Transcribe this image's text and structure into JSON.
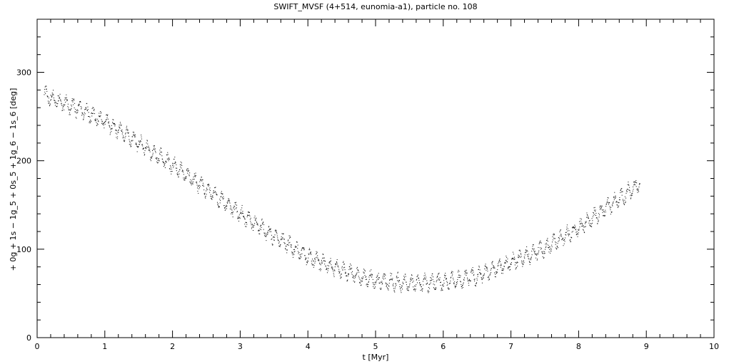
{
  "chart_data": {
    "type": "scatter",
    "title": "SWIFT_MVSF (4+514, eunomia-a1), particle no. 108",
    "xlabel": "t [Myr]",
    "ylabel": "+ 0g + 1s − 1g_5 + 0s_5 + 1g_6 − 1s_6 [deg]",
    "xlim": [
      0,
      10
    ],
    "ylim": [
      0,
      360
    ],
    "x_ticks": [
      0,
      1,
      2,
      3,
      4,
      5,
      6,
      7,
      8,
      9,
      10
    ],
    "x_tick_labels": [
      "0",
      "1",
      "2",
      "3",
      "4",
      "5",
      "6",
      "7",
      "8",
      "9",
      "10"
    ],
    "y_ticks": [
      0,
      100,
      200,
      300
    ],
    "y_tick_labels": [
      "0",
      "100",
      "200",
      "300"
    ],
    "grid": false,
    "marker_color": "#000000",
    "trend": {
      "x": [
        0.1,
        0.5,
        1.0,
        1.5,
        2.0,
        2.5,
        3.0,
        3.5,
        4.0,
        4.5,
        5.0,
        5.5,
        6.0,
        6.5,
        7.0,
        7.5,
        8.0,
        8.5,
        8.9
      ],
      "y": [
        275,
        262,
        245,
        220,
        195,
        168,
        140,
        115,
        92,
        76,
        65,
        62,
        63,
        70,
        85,
        102,
        125,
        152,
        175
      ]
    },
    "scatter_half_width": 10,
    "sample_count": 2000
  }
}
